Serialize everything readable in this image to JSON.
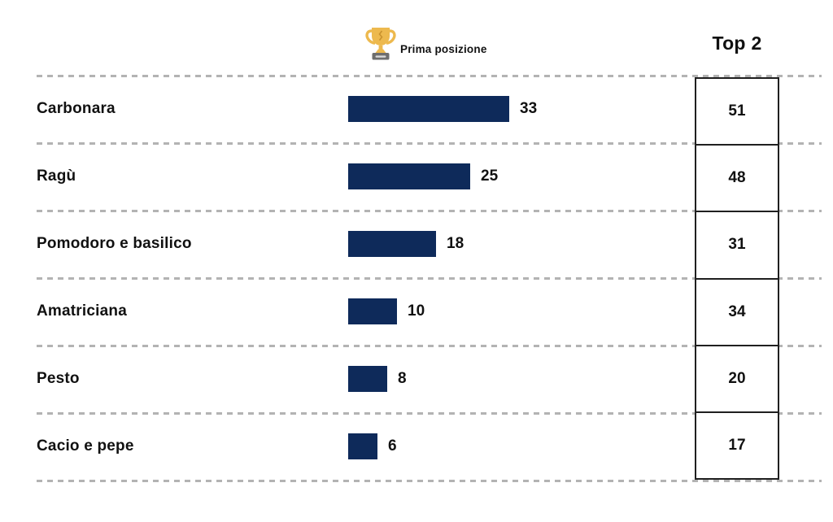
{
  "header": {
    "legend_label": "Prima posizione",
    "legend_icon": "trophy-icon",
    "top2_label": "Top 2"
  },
  "colors": {
    "bar": "#0E2A5A",
    "dashed_line": "#b3b3b3",
    "box_border": "#1f1f1f",
    "trophy_gold": "#EDB94E",
    "trophy_base": "#6e6e6e"
  },
  "chart_data": {
    "type": "bar",
    "orientation": "horizontal",
    "title": "",
    "categories": [
      "Carbonara",
      "Ragù",
      "Pomodoro e basilico",
      "Amatriciana",
      "Pesto",
      "Cacio e pepe"
    ],
    "series": [
      {
        "name": "Prima posizione",
        "values": [
          33,
          25,
          18,
          10,
          8,
          6
        ]
      },
      {
        "name": "Top 2",
        "values": [
          51,
          48,
          31,
          34,
          20,
          17
        ]
      }
    ],
    "xlim": [
      0,
      33
    ],
    "grid": "dashed-row-separators",
    "legend_position": "top-center",
    "value_labels": "end-of-bar"
  }
}
